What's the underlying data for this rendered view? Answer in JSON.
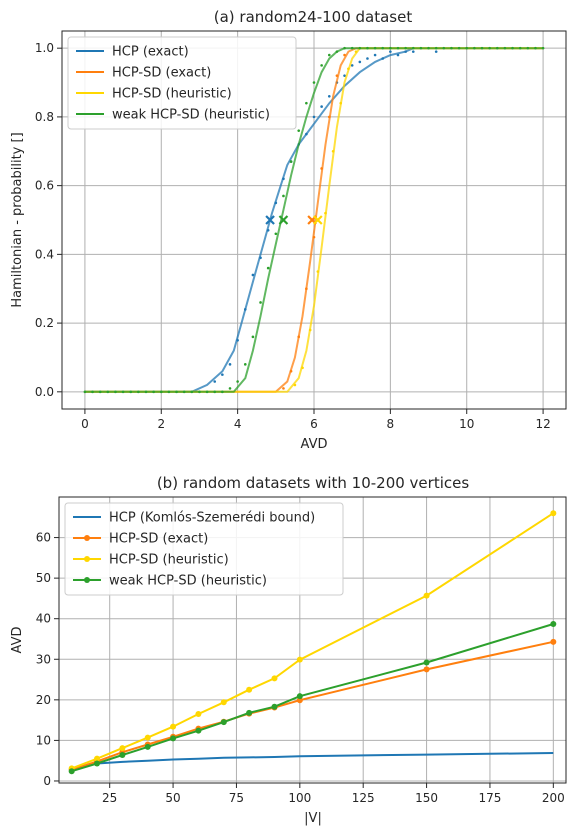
{
  "chart_data": [
    {
      "type": "line",
      "title": "(a) random24-100 dataset",
      "xlabel": "AVD",
      "ylabel": "Hamiltonian - probability []",
      "xlim": [
        -0.6,
        12.6
      ],
      "ylim": [
        -0.05,
        1.05
      ],
      "xticks": [
        0,
        2,
        4,
        6,
        8,
        10,
        12
      ],
      "yticks": [
        0.0,
        0.2,
        0.4,
        0.6,
        0.8,
        1.0
      ],
      "xtick_labels": [
        "0",
        "2",
        "4",
        "6",
        "8",
        "10",
        "12"
      ],
      "ytick_labels": [
        "0.0",
        "0.2",
        "0.4",
        "0.6",
        "0.8",
        "1.0"
      ],
      "grid": true,
      "legend_position": "top-left",
      "series": [
        {
          "name": "HCP (exact)",
          "color": "#1f77b4",
          "curve": {
            "x": [
              0,
              2.8,
              3.2,
              3.6,
              3.9,
              4.1,
              4.3,
              4.5,
              4.7,
              4.9,
              5.1,
              5.3,
              5.6,
              6.0,
              6.4,
              6.8,
              7.2,
              7.6,
              8.0,
              8.4,
              8.6
            ],
            "y": [
              0,
              0,
              0.02,
              0.06,
              0.12,
              0.2,
              0.28,
              0.36,
              0.44,
              0.52,
              0.59,
              0.66,
              0.72,
              0.78,
              0.84,
              0.89,
              0.93,
              0.96,
              0.98,
              0.99,
              1.0
            ]
          },
          "points": {
            "x": [
              3.4,
              3.6,
              3.8,
              4.0,
              4.2,
              4.4,
              4.6,
              4.8,
              5.0,
              5.2,
              5.4,
              5.6,
              5.8,
              6.0,
              6.2,
              6.4,
              6.6,
              6.8,
              7.0,
              7.2,
              7.4,
              7.6,
              7.8,
              8.0,
              8.2,
              8.4,
              8.6,
              9.2
            ],
            "y": [
              0.03,
              0.05,
              0.08,
              0.15,
              0.24,
              0.34,
              0.39,
              0.47,
              0.55,
              0.62,
              0.67,
              0.72,
              0.75,
              0.8,
              0.83,
              0.86,
              0.9,
              0.92,
              0.95,
              0.96,
              0.97,
              0.98,
              0.97,
              0.99,
              0.98,
              0.99,
              0.99,
              0.99
            ]
          },
          "marker_50": {
            "x": 4.85,
            "y": 0.5
          }
        },
        {
          "name": "HCP-SD (exact)",
          "color": "#ff7f0e",
          "curve": {
            "x": [
              0,
              5.0,
              5.3,
              5.5,
              5.7,
              5.9,
              6.1,
              6.3,
              6.5,
              6.7,
              6.9,
              7.1,
              12.0
            ],
            "y": [
              0,
              0,
              0.03,
              0.1,
              0.22,
              0.38,
              0.55,
              0.72,
              0.86,
              0.95,
              0.99,
              1.0,
              1.0
            ]
          },
          "points": {
            "x": [
              5.2,
              5.4,
              5.6,
              5.8,
              6.0,
              6.2,
              6.4,
              6.6,
              6.8
            ],
            "y": [
              0.01,
              0.06,
              0.16,
              0.3,
              0.45,
              0.65,
              0.8,
              0.92,
              0.98
            ]
          },
          "marker_50": {
            "x": 5.95,
            "y": 0.5
          }
        },
        {
          "name": "HCP-SD (heuristic)",
          "color": "#ffd700",
          "curve": {
            "x": [
              0,
              5.3,
              5.6,
              5.8,
              6.0,
              6.2,
              6.4,
              6.6,
              6.8,
              7.0,
              7.2,
              12.0
            ],
            "y": [
              0,
              0,
              0.04,
              0.12,
              0.25,
              0.42,
              0.6,
              0.77,
              0.9,
              0.97,
              1.0,
              1.0
            ]
          },
          "points": {
            "x": [
              5.5,
              5.7,
              5.9,
              6.1,
              6.3,
              6.5,
              6.7,
              6.9,
              7.1
            ],
            "y": [
              0.02,
              0.07,
              0.18,
              0.35,
              0.52,
              0.7,
              0.84,
              0.94,
              0.99
            ]
          },
          "marker_50": {
            "x": 6.1,
            "y": 0.5
          }
        },
        {
          "name": "weak HCP-SD (heuristic)",
          "color": "#2ca02c",
          "curve": {
            "x": [
              0,
              3.9,
              4.2,
              4.4,
              4.6,
              4.8,
              5.0,
              5.2,
              5.4,
              5.6,
              5.8,
              6.0,
              6.2,
              6.4,
              6.6,
              6.8,
              12.0
            ],
            "y": [
              0,
              0,
              0.04,
              0.12,
              0.22,
              0.33,
              0.43,
              0.53,
              0.63,
              0.72,
              0.8,
              0.87,
              0.93,
              0.97,
              0.99,
              1.0,
              1.0
            ]
          },
          "points": {
            "x": [
              0,
              0.2,
              0.4,
              0.6,
              0.8,
              1.0,
              1.2,
              1.4,
              1.6,
              1.8,
              2.0,
              2.2,
              2.4,
              2.6,
              2.8,
              3.0,
              3.2,
              3.4,
              3.6,
              3.8,
              4.0,
              4.2,
              4.4,
              4.6,
              4.8,
              5.0,
              5.2,
              5.4,
              5.6,
              5.8,
              6.0,
              6.2,
              6.4,
              6.6,
              6.8,
              7.0,
              7.2,
              7.4,
              7.6,
              7.8,
              8.0,
              8.2,
              8.4,
              8.6,
              8.8,
              9.0,
              9.2,
              9.4,
              9.6,
              9.8,
              10.0,
              10.2,
              10.4,
              10.6,
              10.8,
              11.0,
              11.2,
              11.4,
              11.6,
              11.8,
              12.0
            ],
            "y": [
              0,
              0,
              0,
              0,
              0,
              0,
              0,
              0,
              0,
              0,
              0,
              0,
              0,
              0,
              0,
              0,
              0,
              0,
              0,
              0.01,
              0.03,
              0.08,
              0.16,
              0.26,
              0.36,
              0.46,
              0.57,
              0.67,
              0.76,
              0.84,
              0.9,
              0.95,
              0.98,
              0.99,
              1.0,
              1.0,
              1.0,
              1.0,
              1.0,
              1.0,
              1.0,
              1.0,
              1.0,
              1.0,
              1.0,
              1.0,
              1.0,
              1.0,
              1.0,
              1.0,
              1.0,
              1.0,
              1.0,
              1.0,
              1.0,
              1.0,
              1.0,
              1.0,
              1.0,
              1.0,
              1.0
            ]
          },
          "marker_50": {
            "x": 5.2,
            "y": 0.5
          }
        }
      ]
    },
    {
      "type": "line",
      "title": "(b) random datasets with 10-200 vertices",
      "xlabel": "|V|",
      "ylabel": "AVD",
      "xlim": [
        5,
        205
      ],
      "ylim": [
        -0.5,
        70
      ],
      "xticks": [
        25,
        50,
        75,
        100,
        125,
        150,
        175,
        200
      ],
      "yticks": [
        0,
        10,
        20,
        30,
        40,
        50,
        60
      ],
      "xtick_labels": [
        "25",
        "50",
        "75",
        "100",
        "125",
        "150",
        "175",
        "200"
      ],
      "ytick_labels": [
        "0",
        "10",
        "20",
        "30",
        "40",
        "50",
        "60"
      ],
      "grid": true,
      "legend_position": "top-left",
      "series": [
        {
          "name": "HCP (Komlós-Szemerédi bound)",
          "color": "#1f77b4",
          "markers": false,
          "x": [
            10,
            20,
            30,
            40,
            50,
            60,
            70,
            80,
            90,
            100,
            125,
            150,
            175,
            200
          ],
          "y": [
            3.0,
            4.3,
            4.7,
            5.0,
            5.3,
            5.5,
            5.7,
            5.8,
            5.9,
            6.1,
            6.3,
            6.5,
            6.7,
            6.9
          ]
        },
        {
          "name": "HCP-SD (exact)",
          "color": "#ff7f0e",
          "markers": true,
          "x": [
            10,
            20,
            30,
            40,
            50,
            60,
            70,
            80,
            90,
            100,
            150,
            200
          ],
          "y": [
            2.8,
            4.8,
            7.1,
            9.0,
            10.9,
            12.9,
            14.6,
            16.6,
            18.1,
            19.9,
            27.5,
            34.3
          ]
        },
        {
          "name": "HCP-SD (heuristic)",
          "color": "#ffd700",
          "markers": true,
          "x": [
            10,
            20,
            30,
            40,
            50,
            60,
            70,
            80,
            90,
            100,
            150,
            200
          ],
          "y": [
            3.1,
            5.5,
            8.1,
            10.7,
            13.4,
            16.5,
            19.4,
            22.5,
            25.3,
            29.9,
            45.7,
            66.0
          ]
        },
        {
          "name": "weak HCP-SD (heuristic)",
          "color": "#2ca02c",
          "markers": true,
          "x": [
            10,
            20,
            30,
            40,
            50,
            60,
            70,
            80,
            90,
            100,
            150,
            200
          ],
          "y": [
            2.4,
            4.3,
            6.4,
            8.4,
            10.5,
            12.4,
            14.5,
            16.8,
            18.3,
            20.9,
            29.2,
            38.7
          ]
        }
      ]
    }
  ]
}
